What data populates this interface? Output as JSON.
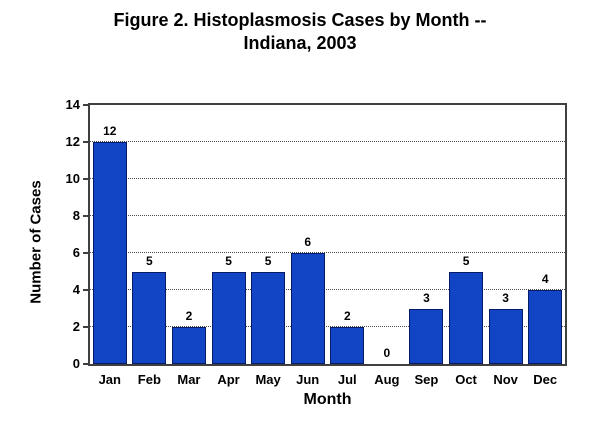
{
  "title": {
    "line1": "Figure 2. Histoplasmosis Cases by Month --",
    "line2": "Indiana, 2003"
  },
  "chart_data": {
    "type": "bar",
    "title": "Figure 2. Histoplasmosis Cases by Month -- Indiana, 2003",
    "categories": [
      "Jan",
      "Feb",
      "Mar",
      "Apr",
      "May",
      "Jun",
      "Jul",
      "Aug",
      "Sep",
      "Oct",
      "Nov",
      "Dec"
    ],
    "values": [
      12,
      5,
      2,
      5,
      5,
      6,
      2,
      0,
      3,
      5,
      3,
      4
    ],
    "xlabel": "Month",
    "ylabel": "Number of Cases",
    "ylim": [
      0,
      14
    ],
    "ytick_step": 2,
    "yticks": [
      0,
      2,
      4,
      6,
      8,
      10,
      12,
      14
    ],
    "grid": "horizontal dotted lines at every 2 units",
    "legend": "none",
    "data_labels": true
  },
  "colors": {
    "bar_fill": "#1145C5",
    "bar_border": "#061A66",
    "grid": "#4a4a4a",
    "plot_border": "#404040",
    "text": "#000000",
    "background": "#FFFFFF"
  }
}
